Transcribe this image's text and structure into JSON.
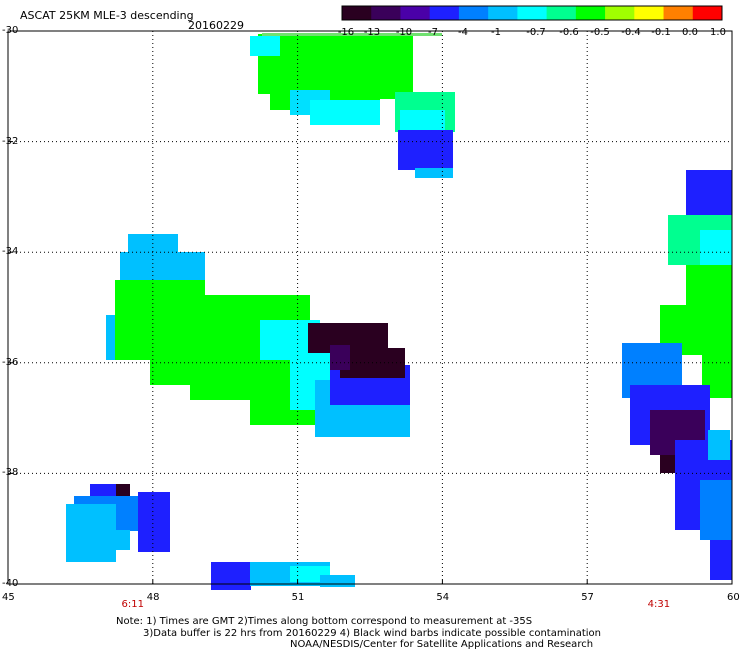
{
  "header": {
    "title": "ASCAT 25KM MLE-3 descending",
    "date": "20160229"
  },
  "colorbar": {
    "labels": [
      "-16",
      "-13",
      "-10",
      "-7",
      "-4",
      "-1",
      "-0.7",
      "-0.6",
      "-0.5",
      "-0.4",
      "-0.1",
      "0.0",
      "1.0"
    ],
    "colors": [
      "#2a0020",
      "#3a005a",
      "#4a00a8",
      "#1e20ff",
      "#0080ff",
      "#00c0ff",
      "#00ffff",
      "#00ff90",
      "#00ff00",
      "#a0ff00",
      "#ffff00",
      "#ff8000",
      "#ff0000"
    ]
  },
  "map": {
    "lon_labels": [
      "45",
      "48",
      "51",
      "54",
      "57",
      "60"
    ],
    "lat_labels": [
      "-30",
      "-32",
      "-34",
      "-36",
      "-38",
      "-40"
    ],
    "lon_range": [
      45,
      60
    ],
    "lat_range": [
      -30,
      -40
    ],
    "gridlines": "dotted"
  },
  "pass_times": [
    {
      "label": "6:11",
      "lon": 47.6
    },
    {
      "label": "4:31",
      "lon": 58.5
    }
  ],
  "notes": {
    "line1": "Note: 1) Times are GMT 2)Times along bottom correspond to measurement at -35S",
    "line2": "3)Data buffer is 22 hrs from 20160229 4) Black wind barbs indicate possible contamination",
    "line3": "NOAA/NESDIS/Center for Satellite Applications and Research"
  }
}
